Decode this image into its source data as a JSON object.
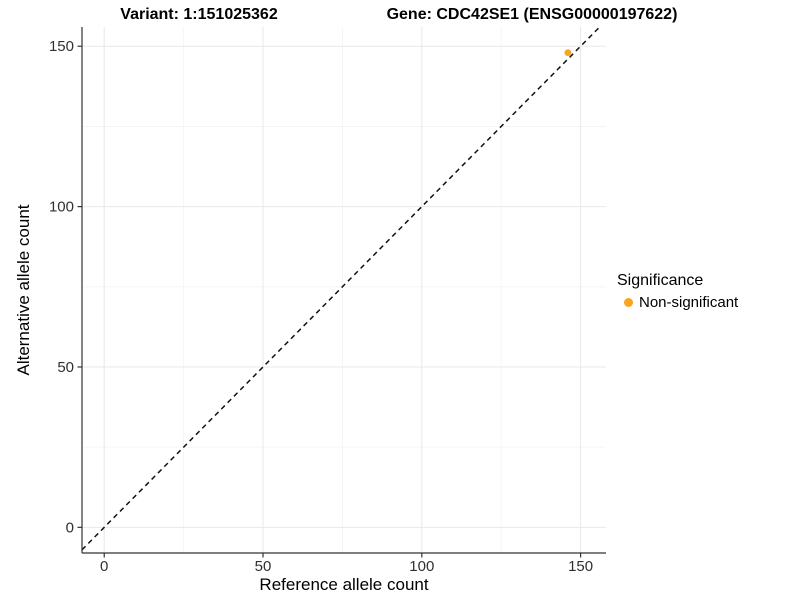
{
  "titles": {
    "variant": "Variant: 1:151025362",
    "gene": "Gene: CDC42SE1 (ENSG00000197622)"
  },
  "axes": {
    "x_label": "Reference allele count",
    "y_label": "Alternative allele count"
  },
  "legend": {
    "title": "Significance",
    "entries": [
      {
        "label": "Non-significant",
        "color": "#FAA51E",
        "marker": "circle-icon"
      }
    ]
  },
  "chart_data": {
    "type": "scatter",
    "title": "Variant: 1:151025362 / Gene: CDC42SE1 (ENSG00000197622)",
    "xlabel": "Reference allele count",
    "ylabel": "Alternative allele count",
    "xlim": [
      -7,
      158
    ],
    "ylim": [
      -8,
      156
    ],
    "x_ticks": [
      0,
      50,
      100,
      150
    ],
    "y_ticks": [
      0,
      50,
      100,
      150
    ],
    "x_minor_gridlines": [
      25,
      75,
      125
    ],
    "y_minor_gridlines": [
      25,
      75,
      125
    ],
    "grid": "on",
    "legend_position": "right",
    "reference_line": {
      "type": "identity y=x",
      "style": "dashed",
      "color": "#111111"
    },
    "series": [
      {
        "name": "Non-significant",
        "color": "#FAA51E",
        "points": [
          {
            "x": 146,
            "y": 148
          }
        ]
      }
    ]
  },
  "colors": {
    "background": "#FFFFFF",
    "grid_major": "#E8E8E8",
    "grid_minor": "#F3F3F3",
    "axis_line": "#333333",
    "tick_mark": "#333333",
    "tick_text": "#303030",
    "dashed_line": "#111111",
    "accent_orange": "#FAA51E"
  }
}
